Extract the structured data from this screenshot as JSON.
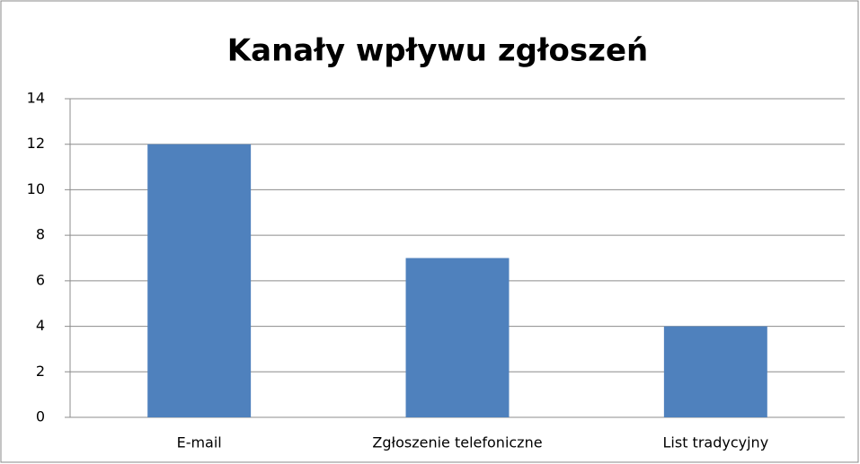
{
  "chart_data": {
    "type": "bar",
    "title": "Kanały wpływu zgłoszeń",
    "categories": [
      "E-mail",
      "Zgłoszenie telefoniczne",
      "List tradycyjny"
    ],
    "values": [
      12,
      7,
      4
    ],
    "color": "#4f81bd",
    "ylim": [
      0,
      14
    ],
    "yticks": [
      0,
      2,
      4,
      6,
      8,
      10,
      12,
      14
    ],
    "grid": true
  }
}
